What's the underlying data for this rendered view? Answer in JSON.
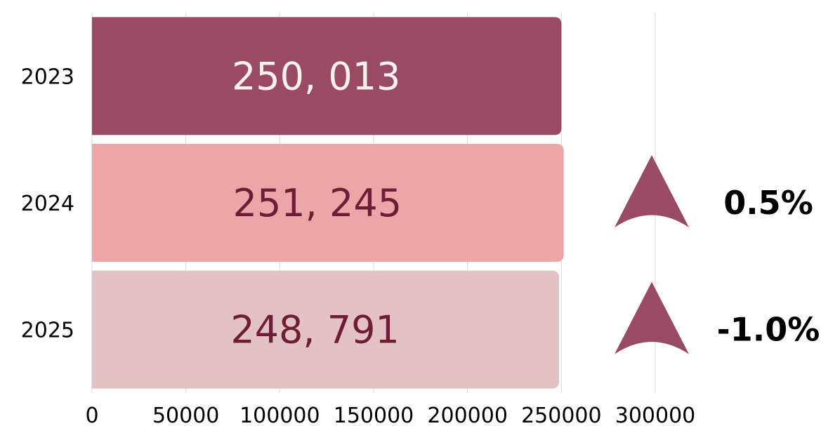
{
  "chart_data": {
    "type": "bar",
    "orientation": "horizontal",
    "categories": [
      "2023",
      "2024",
      "2025"
    ],
    "values": [
      250013,
      251245,
      248791
    ],
    "value_labels": [
      "250, 013",
      "251, 245",
      "248, 791"
    ],
    "bar_colors": [
      "#994a65",
      "#eda6a7",
      "#e2c2c5"
    ],
    "label_colors": [
      "#fcf0ee",
      "#6f1d37",
      "#6f1d37"
    ],
    "xlim": [
      0,
      300000
    ],
    "x_ticks": [
      0,
      50000,
      100000,
      150000,
      200000,
      250000,
      300000
    ],
    "x_tick_labels": [
      "0",
      "50000",
      "100000",
      "150000",
      "200000",
      "250000",
      "300000"
    ],
    "grid": true,
    "title": "",
    "xlabel": "",
    "ylabel": "",
    "annotations": [
      {
        "category": "2024",
        "text": "0.5%",
        "icon": "up-arrow-icon",
        "value": 0.5
      },
      {
        "category": "2025",
        "text": "-1.0%",
        "icon": "up-arrow-icon",
        "value": -1.0
      }
    ],
    "accent_color": "#994a65",
    "grid_color": "#d6d6d6"
  }
}
